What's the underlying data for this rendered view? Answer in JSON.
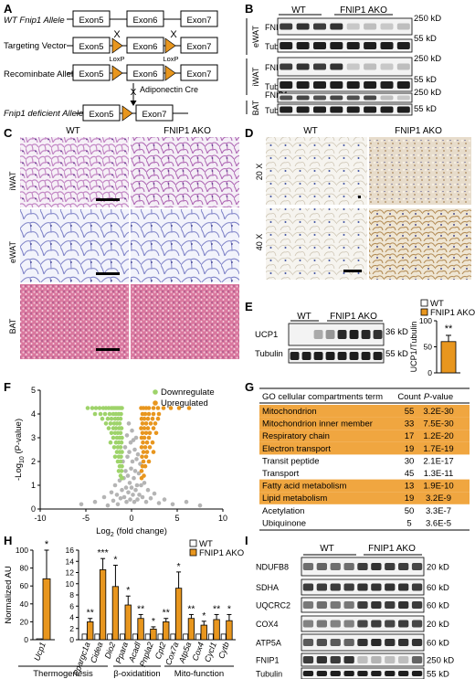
{
  "panels": {
    "A": {
      "letter": "A",
      "rows": [
        "WT Fnip1 Allele",
        "Targeting Vector",
        "Recominbate Allele",
        "Fnip1 deficient Allele"
      ],
      "exons": [
        "Exon5",
        "Exon6",
        "Exon7"
      ],
      "loxp": "LoxP",
      "cross": "X",
      "cre": "Adiponectin Cre"
    },
    "B": {
      "letter": "B",
      "groups": [
        "WT",
        "FNIP1 AKO"
      ],
      "tissues": [
        "eWAT",
        "iWAT",
        "BAT"
      ],
      "proteins": [
        "FNIP1",
        "Tubulin"
      ],
      "kd": [
        "250 kD",
        "55 kD"
      ]
    },
    "C": {
      "letter": "C",
      "groups": [
        "WT",
        "FNIP1 AKO"
      ],
      "rows": [
        "iWAT",
        "eWAT",
        "BAT"
      ]
    },
    "D": {
      "letter": "D",
      "groups": [
        "WT",
        "FNIP1 AKO"
      ],
      "rows": [
        "20 X",
        "40 X"
      ]
    },
    "E": {
      "letter": "E",
      "groups": [
        "WT",
        "FNIP1 AKO"
      ],
      "proteins": [
        "UCP1",
        "Tubulin"
      ],
      "kd": [
        "36 kD",
        "55 kD"
      ],
      "sig": "**"
    },
    "F": {
      "letter": "F",
      "legend": [
        "Downregulate",
        "Upregulated"
      ]
    },
    "G": {
      "letter": "G",
      "headers": [
        "GO cellular compartments term",
        "Count",
        "P-value"
      ],
      "rows": [
        {
          "term": "Mitochondrion",
          "count": "55",
          "p": "3.2E-30",
          "hl": true
        },
        {
          "term": "Mitochondrion inner member",
          "count": "33",
          "p": "7.5E-30",
          "hl": true
        },
        {
          "term": "Respiratory chain",
          "count": "17",
          "p": "1.2E-20",
          "hl": true
        },
        {
          "term": "Electron transport",
          "count": "19",
          "p": "1.7E-19",
          "hl": true
        },
        {
          "term": "Transit peptide",
          "count": "30",
          "p": "2.1E-17",
          "hl": false
        },
        {
          "term": "Transport",
          "count": "45",
          "p": "1.3E-11",
          "hl": false
        },
        {
          "term": "Fatty acid metabolism",
          "count": "13",
          "p": "1.9E-10",
          "hl": true
        },
        {
          "term": "Lipid metabolism",
          "count": "19",
          "p": "3.2E-9",
          "hl": true
        },
        {
          "term": "Acetylation",
          "count": "50",
          "p": "3.3E-7",
          "hl": false
        },
        {
          "term": "Ubiquinone",
          "count": "5",
          "p": "3.6E-5",
          "hl": false
        }
      ]
    },
    "H": {
      "letter": "H",
      "legend": [
        "WT",
        "FNIP1 AKO"
      ],
      "groups": [
        "Thermogenesis",
        "β-oxidatition",
        "Mito-function"
      ]
    },
    "I": {
      "letter": "I",
      "groups": [
        "WT",
        "FNIP1 AKO"
      ],
      "proteins": [
        "NDUFB8",
        "SDHA",
        "UQCRC2",
        "COX4",
        "ATP5A",
        "FNIP1",
        "Tubulin"
      ],
      "kd": [
        "20 kD",
        "60 kD",
        "60 kD",
        "20 kD",
        "60 kD",
        "250 kD",
        "55 kD"
      ]
    }
  },
  "colors": {
    "ako": "#e8961e",
    "wt": "#ffffff",
    "down": "#9ed36a",
    "up": "#e8961e",
    "ns": "#b4b4b4",
    "highlight": "#f0a640"
  },
  "chart_data": [
    {
      "panel": "E",
      "type": "bar",
      "categories": [
        "WT",
        "FNIP1 AKO"
      ],
      "values": [
        0,
        60
      ],
      "errors": [
        0,
        12
      ],
      "ylabel": "UCP1/Tubulin",
      "ylim": [
        0,
        100
      ],
      "yticks": [
        "0",
        "50",
        "100"
      ]
    },
    {
      "panel": "F",
      "type": "scatter",
      "xlabel": "Log2 (fold change)",
      "ylabel": "-Log10 (P-value)",
      "xlim": [
        -10,
        10
      ],
      "ylim": [
        0,
        5
      ],
      "xticks": [
        "-10",
        "-5",
        "0",
        "5",
        "10"
      ],
      "yticks": [
        "0",
        "1",
        "2",
        "3",
        "4",
        "5"
      ],
      "series": [
        {
          "name": "Downregulate",
          "points": [
            [
              -4.8,
              4.25
            ],
            [
              -4.3,
              4.25
            ],
            [
              -3.9,
              4.25
            ],
            [
              -3.5,
              4.25
            ],
            [
              -3.1,
              4.25
            ],
            [
              -2.8,
              4.25
            ],
            [
              -2.5,
              4.25
            ],
            [
              -2.2,
              4.25
            ],
            [
              -2.0,
              4.25
            ],
            [
              -1.8,
              4.25
            ],
            [
              -1.6,
              4.25
            ],
            [
              -1.4,
              4.25
            ],
            [
              -1.2,
              4.25
            ],
            [
              -1.05,
              4.25
            ],
            [
              -4.0,
              4.0
            ],
            [
              -3.4,
              4.0
            ],
            [
              -2.9,
              4.0
            ],
            [
              -2.4,
              4.0
            ],
            [
              -2.0,
              4.0
            ],
            [
              -1.7,
              4.0
            ],
            [
              -1.4,
              4.0
            ],
            [
              -1.15,
              4.0
            ],
            [
              -3.2,
              3.8
            ],
            [
              -2.6,
              3.8
            ],
            [
              -2.2,
              3.8
            ],
            [
              -1.8,
              3.8
            ],
            [
              -1.5,
              3.8
            ],
            [
              -1.2,
              3.8
            ],
            [
              -2.8,
              3.6
            ],
            [
              -2.3,
              3.6
            ],
            [
              -1.9,
              3.6
            ],
            [
              -1.6,
              3.6
            ],
            [
              -1.3,
              3.6
            ],
            [
              -2.5,
              3.4
            ],
            [
              -2.0,
              3.4
            ],
            [
              -1.7,
              3.4
            ],
            [
              -1.35,
              3.4
            ],
            [
              -1.1,
              3.4
            ],
            [
              -2.2,
              3.2
            ],
            [
              -1.8,
              3.2
            ],
            [
              -1.5,
              3.2
            ],
            [
              -1.2,
              3.2
            ],
            [
              -2.0,
              3.0
            ],
            [
              -1.6,
              3.0
            ],
            [
              -1.3,
              3.0
            ],
            [
              -1.05,
              3.0
            ],
            [
              -2.3,
              2.8
            ],
            [
              -1.7,
              2.8
            ],
            [
              -1.4,
              2.8
            ],
            [
              -1.1,
              2.8
            ],
            [
              -1.9,
              2.6
            ],
            [
              -1.5,
              2.6
            ],
            [
              -1.2,
              2.6
            ],
            [
              -1.6,
              2.4
            ],
            [
              -1.3,
              2.4
            ],
            [
              -1.05,
              2.4
            ],
            [
              -1.8,
              2.2
            ],
            [
              -1.4,
              2.2
            ],
            [
              -1.15,
              2.2
            ],
            [
              -1.5,
              2.0
            ],
            [
              -1.2,
              2.0
            ],
            [
              -1.3,
              1.8
            ],
            [
              -1.05,
              1.8
            ],
            [
              -1.4,
              1.6
            ],
            [
              -1.1,
              1.6
            ],
            [
              -1.2,
              1.4
            ],
            [
              -1.05,
              1.3
            ]
          ]
        },
        {
          "name": "Upregulated",
          "points": [
            [
              1.05,
              4.25
            ],
            [
              1.3,
              4.25
            ],
            [
              1.6,
              4.25
            ],
            [
              1.9,
              4.25
            ],
            [
              2.4,
              4.25
            ],
            [
              2.9,
              4.25
            ],
            [
              3.5,
              4.25
            ],
            [
              4.3,
              4.25
            ],
            [
              5.2,
              4.25
            ],
            [
              6.3,
              4.25
            ],
            [
              1.2,
              4.0
            ],
            [
              1.5,
              4.0
            ],
            [
              1.9,
              4.0
            ],
            [
              2.4,
              4.0
            ],
            [
              3.0,
              4.0
            ],
            [
              1.1,
              3.8
            ],
            [
              1.4,
              3.8
            ],
            [
              1.8,
              3.8
            ],
            [
              2.3,
              3.8
            ],
            [
              2.9,
              3.8
            ],
            [
              1.2,
              3.6
            ],
            [
              1.6,
              3.6
            ],
            [
              2.1,
              3.6
            ],
            [
              2.6,
              3.6
            ],
            [
              1.05,
              3.4
            ],
            [
              1.4,
              3.4
            ],
            [
              1.8,
              3.4
            ],
            [
              2.4,
              3.4
            ],
            [
              1.2,
              3.2
            ],
            [
              1.6,
              3.2
            ],
            [
              2.0,
              3.2
            ],
            [
              2.7,
              3.2
            ],
            [
              1.1,
              3.0
            ],
            [
              1.4,
              3.0
            ],
            [
              1.9,
              3.0
            ],
            [
              1.25,
              2.8
            ],
            [
              1.7,
              2.8
            ],
            [
              2.3,
              2.8
            ],
            [
              1.1,
              2.6
            ],
            [
              1.5,
              2.6
            ],
            [
              2.0,
              2.6
            ],
            [
              1.3,
              2.4
            ],
            [
              1.7,
              2.4
            ],
            [
              2.4,
              2.4
            ],
            [
              1.15,
              2.2
            ],
            [
              1.6,
              2.2
            ],
            [
              1.3,
              2.0
            ],
            [
              1.9,
              2.0
            ],
            [
              1.2,
              1.8
            ],
            [
              1.5,
              1.8
            ],
            [
              1.1,
              1.6
            ],
            [
              1.35,
              1.4
            ],
            [
              1.1,
              1.3
            ]
          ]
        },
        {
          "name": "ns",
          "points": [
            [
              -5.5,
              0.2
            ],
            [
              -4.0,
              0.3
            ],
            [
              -3.0,
              0.5
            ],
            [
              -2.6,
              0.15
            ],
            [
              -2.2,
              0.7
            ],
            [
              -2.0,
              0.35
            ],
            [
              -1.8,
              1.0
            ],
            [
              -1.6,
              0.6
            ],
            [
              -1.5,
              0.2
            ],
            [
              -1.3,
              1.2
            ],
            [
              -1.2,
              0.45
            ],
            [
              -1.05,
              0.8
            ],
            [
              -0.95,
              2.0
            ],
            [
              -0.85,
              1.3
            ],
            [
              -0.8,
              0.5
            ],
            [
              -0.7,
              2.6
            ],
            [
              -0.65,
              1.6
            ],
            [
              -0.6,
              0.9
            ],
            [
              -0.55,
              0.3
            ],
            [
              -0.5,
              3.1
            ],
            [
              -0.45,
              2.2
            ],
            [
              -0.4,
              1.4
            ],
            [
              -0.35,
              0.7
            ],
            [
              -0.3,
              3.6
            ],
            [
              -0.25,
              2.4
            ],
            [
              -0.2,
              1.1
            ],
            [
              -0.15,
              0.4
            ],
            [
              -0.1,
              2.8
            ],
            [
              -0.05,
              1.7
            ],
            [
              0.0,
              0.9
            ],
            [
              0.05,
              3.3
            ],
            [
              0.1,
              2.0
            ],
            [
              0.15,
              0.6
            ],
            [
              0.2,
              2.9
            ],
            [
              0.25,
              1.3
            ],
            [
              0.3,
              0.3
            ],
            [
              0.35,
              2.5
            ],
            [
              0.4,
              1.6
            ],
            [
              0.45,
              0.8
            ],
            [
              0.5,
              3.0
            ],
            [
              0.55,
              2.1
            ],
            [
              0.6,
              1.0
            ],
            [
              0.65,
              0.4
            ],
            [
              0.7,
              2.3
            ],
            [
              0.8,
              1.5
            ],
            [
              0.85,
              0.6
            ],
            [
              0.95,
              1.9
            ],
            [
              1.05,
              1.0
            ],
            [
              1.2,
              0.5
            ],
            [
              1.4,
              1.1
            ],
            [
              1.6,
              0.3
            ],
            [
              1.8,
              0.8
            ],
            [
              2.1,
              0.45
            ],
            [
              2.5,
              0.65
            ],
            [
              3.0,
              0.25
            ],
            [
              3.6,
              0.4
            ],
            [
              4.5,
              0.2
            ],
            [
              6.0,
              0.3
            ],
            [
              7.5,
              0.15
            ]
          ]
        }
      ]
    },
    {
      "panel": "H",
      "type": "bar",
      "ylabel": "Normalized AU",
      "subplots": [
        {
          "categories": [
            "Ucp1"
          ],
          "ylim": [
            0,
            100
          ],
          "yticks": [
            "0",
            "20",
            "40",
            "60",
            "80",
            "100"
          ],
          "series": [
            {
              "name": "WT",
              "values": [
                1
              ],
              "errors": [
                0
              ]
            },
            {
              "name": "FNIP1 AKO",
              "values": [
                68
              ],
              "errors": [
                32
              ]
            }
          ],
          "sig": [
            "*"
          ]
        },
        {
          "categories": [
            "Ppargc1a",
            "Cidea",
            "Dio2",
            "Ppara",
            "Acadl",
            "Pnpla2",
            "Cpt2",
            "Cox7a",
            "Atp5a",
            "Cox4",
            "Cycl1",
            "Cytb"
          ],
          "ylim": [
            0,
            16
          ],
          "yticks": [
            "0",
            "2",
            "4",
            "6",
            "8",
            "10",
            "12",
            "14",
            "16"
          ],
          "series": [
            {
              "name": "WT",
              "values": [
                1,
                1,
                1,
                1,
                1,
                1,
                1,
                1,
                1,
                1,
                1,
                1
              ],
              "errors": [
                0.1,
                0.1,
                0.1,
                0.1,
                0.1,
                0.1,
                0.1,
                0.1,
                0.1,
                0.1,
                0.1,
                0.1
              ]
            },
            {
              "name": "FNIP1 AKO",
              "values": [
                3.2,
                12.5,
                9.5,
                6.2,
                3.8,
                1.9,
                3.2,
                9.2,
                3.8,
                2.6,
                3.6,
                3.4
              ],
              "errors": [
                0.6,
                2.0,
                3.8,
                1.6,
                0.7,
                0.4,
                0.6,
                2.9,
                0.7,
                0.7,
                0.9,
                1.1
              ]
            }
          ],
          "sig": [
            "**",
            "***",
            "*",
            "*",
            "**",
            "*",
            "**",
            "*",
            "**",
            "*",
            "**",
            "*"
          ]
        }
      ]
    }
  ]
}
